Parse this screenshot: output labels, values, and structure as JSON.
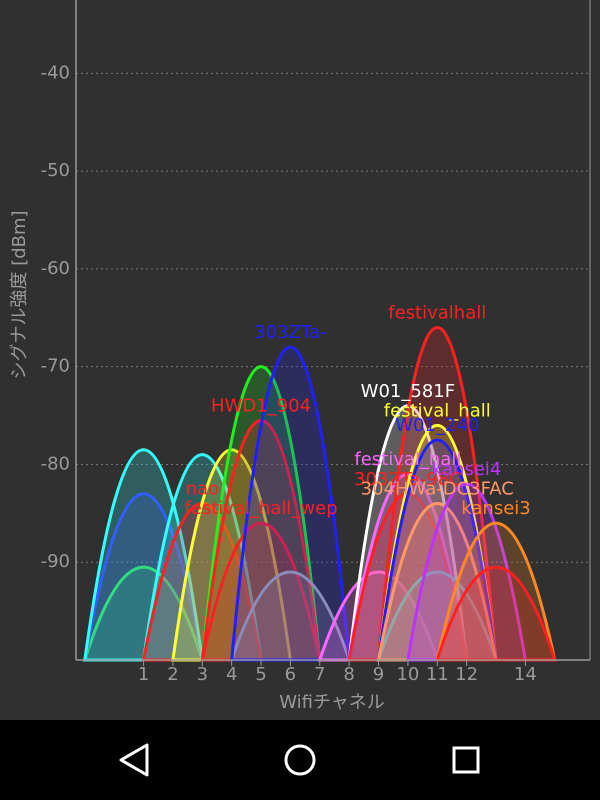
{
  "chart_data": {
    "type": "wifi-channel",
    "y_label": "シグナル強度 [dBm]",
    "x_label": "Wifiチャネル",
    "xlim": [
      -1.3,
      16.2
    ],
    "xticks": [
      1,
      2,
      3,
      4,
      5,
      6,
      7,
      8,
      9,
      10,
      11,
      12,
      14
    ],
    "ylim": [
      -100,
      -32.5
    ],
    "yticks": [
      -40,
      -50,
      -60,
      -70,
      -80,
      -90
    ],
    "grid": true,
    "series": [
      {
        "name": null,
        "color": "#33ff33",
        "channel": 1,
        "value": -90.5
      },
      {
        "name": null,
        "color": "#3333ff",
        "channel": 1,
        "value": -83
      },
      {
        "name": null,
        "color": "#33ffff",
        "channel": 1,
        "value": -78.5
      },
      {
        "name": null,
        "color": "#33ffff",
        "channel": 3,
        "value": -79
      },
      {
        "name": "nao",
        "color": "#ff2020",
        "channel": 3,
        "value": -84
      },
      {
        "name": null,
        "color": "#ffff33",
        "channel": 4,
        "value": -78.5
      },
      {
        "name": null,
        "color": "#22ee22",
        "channel": 5,
        "value": -70
      },
      {
        "name": "HWD1_904",
        "color": "#ff2020",
        "channel": 5,
        "value": -75.5
      },
      {
        "name": "festival_hall_wep",
        "color": "#ff2020",
        "channel": 5,
        "value": -86
      },
      {
        "name": null,
        "color": "#aaaaaa",
        "channel": 6,
        "value": -91
      },
      {
        "name": "303ZTa-",
        "color": "#2020ff",
        "channel": 6,
        "value": -68
      },
      {
        "name": null,
        "color": "#ff66ff",
        "channel": 9,
        "value": -91
      },
      {
        "name": "W01_581F",
        "color": "#ffffff",
        "channel": 10,
        "value": -74
      },
      {
        "name": "festival_hall",
        "color": "#ff66ff",
        "channel": 10,
        "value": -81
      },
      {
        "name": "303ZTa-98C",
        "color": "#ff2020",
        "channel": 10,
        "value": -83
      },
      {
        "name": null,
        "color": "#33ffff",
        "channel": 11,
        "value": -91
      },
      {
        "name": "festivalhall",
        "color": "#ff2020",
        "channel": 11,
        "value": -66
      },
      {
        "name": "festival_hall",
        "color": "#ffff33",
        "channel": 11,
        "value": -76
      },
      {
        "name": "W01_240",
        "color": "#2020ff",
        "channel": 11,
        "value": -77.5
      },
      {
        "name": "304HWa-DC3FAC",
        "color": "#ff9966",
        "channel": 11,
        "value": -84
      },
      {
        "name": "kansei4",
        "color": "#bb33ff",
        "channel": 12,
        "value": -82
      },
      {
        "name": "kansei3",
        "color": "#ff8822",
        "channel": 13,
        "value": -86
      },
      {
        "name": null,
        "color": "#ff2020",
        "channel": 13,
        "value": -90.5
      }
    ]
  }
}
